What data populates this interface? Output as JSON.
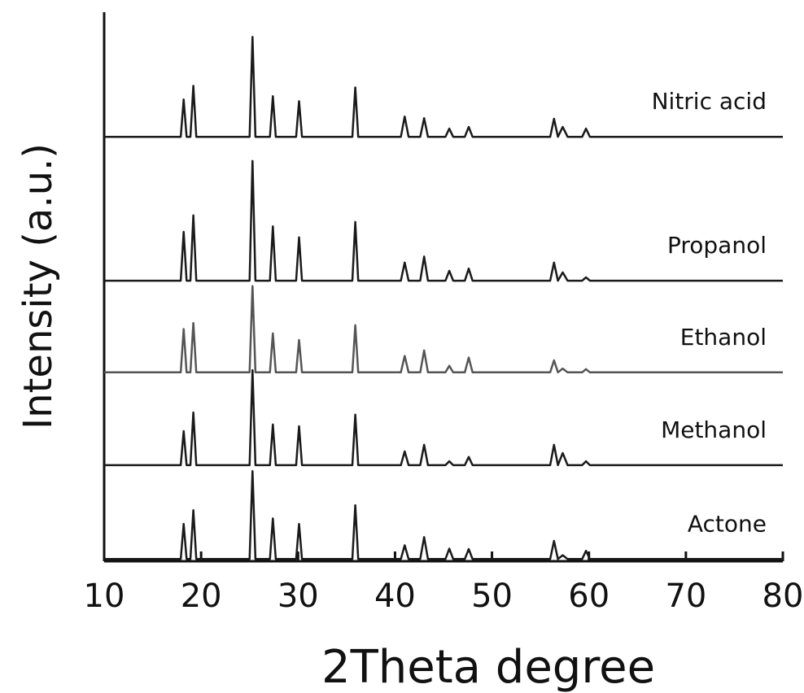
{
  "chart_data": {
    "type": "line",
    "xlabel": "2Theta degree",
    "ylabel": "Intensity (a.u.)",
    "x": [
      10,
      17.9,
      18.2,
      18.5,
      18.9,
      19.2,
      19.5,
      25.0,
      25.3,
      25.6,
      27.1,
      27.4,
      27.7,
      29.8,
      30.1,
      30.4,
      35.6,
      35.9,
      36.2,
      40.6,
      41.0,
      41.4,
      42.6,
      43.0,
      43.4,
      45.2,
      45.6,
      46.0,
      47.2,
      47.6,
      48.0,
      56.0,
      56.4,
      56.8,
      57.3,
      57.8,
      59.3,
      59.7,
      60.1,
      80
    ],
    "series": [
      {
        "name": "Nitric acid",
        "color": "#1a1a1a",
        "values": [
          77.3,
          77.3,
          84.1,
          77.3,
          77.3,
          86.6,
          77.3,
          77.3,
          95.5,
          77.3,
          77.3,
          84.7,
          77.3,
          77.3,
          83.8,
          77.3,
          77.3,
          86.3,
          77.3,
          77.3,
          81.0,
          77.3,
          77.3,
          80.7,
          77.3,
          77.3,
          78.8,
          77.3,
          77.3,
          79.1,
          77.3,
          77.3,
          80.6,
          77.3,
          79.1,
          77.3,
          77.3,
          78.8,
          77.3,
          77.3
        ]
      },
      {
        "name": "Propanol",
        "color": "#1a1a1a",
        "values": [
          51.1,
          51.1,
          60.0,
          51.1,
          51.1,
          63.0,
          51.1,
          51.1,
          72.9,
          51.1,
          51.1,
          61.0,
          51.1,
          51.1,
          59.0,
          51.1,
          51.1,
          61.8,
          51.1,
          51.1,
          54.4,
          51.1,
          51.1,
          55.5,
          51.1,
          51.1,
          52.9,
          51.1,
          51.1,
          53.3,
          51.1,
          51.1,
          54.4,
          51.1,
          52.6,
          51.1,
          51.1,
          51.7,
          51.1,
          51.1
        ]
      },
      {
        "name": "Ethanol",
        "color": "#555555",
        "values": [
          34.4,
          34.4,
          42.3,
          34.4,
          34.4,
          43.4,
          34.4,
          34.4,
          50.1,
          34.4,
          34.4,
          41.5,
          34.4,
          34.4,
          40.3,
          34.4,
          34.4,
          43.0,
          34.4,
          34.4,
          37.4,
          34.4,
          34.4,
          38.4,
          34.4,
          34.4,
          35.6,
          34.4,
          34.4,
          37.1,
          34.4,
          34.4,
          36.6,
          34.4,
          35.1,
          34.4,
          34.4,
          35.0,
          34.4,
          34.4
        ]
      },
      {
        "name": "Methanol",
        "color": "#1a1a1a",
        "values": [
          17.5,
          17.5,
          23.7,
          17.5,
          17.5,
          27.1,
          17.5,
          17.5,
          34.8,
          17.5,
          17.5,
          24.9,
          17.5,
          17.5,
          24.6,
          17.5,
          17.5,
          26.7,
          17.5,
          17.5,
          20.0,
          17.5,
          17.5,
          21.2,
          17.5,
          17.5,
          18.2,
          17.5,
          17.5,
          19.0,
          17.5,
          17.5,
          21.2,
          17.5,
          19.7,
          17.5,
          17.5,
          18.2,
          17.5,
          17.5
        ]
      },
      {
        "name": "Actone",
        "color": "#1a1a1a",
        "values": [
          0.4,
          0.4,
          6.8,
          0.4,
          0.4,
          9.3,
          0.4,
          0.4,
          16.4,
          0.4,
          0.4,
          7.8,
          0.4,
          0.4,
          6.8,
          0.4,
          0.4,
          10.2,
          0.4,
          0.4,
          2.9,
          0.4,
          0.4,
          4.4,
          0.4,
          0.4,
          2.3,
          0.4,
          0.4,
          2.2,
          0.4,
          0.4,
          3.7,
          0.4,
          1.1,
          0.4,
          0.4,
          1.9,
          0.4,
          0.4
        ]
      }
    ],
    "xlim": [
      10,
      80
    ],
    "xticks": [
      10,
      20,
      30,
      40,
      50,
      60,
      70,
      80
    ],
    "ylim": [
      0,
      100
    ]
  }
}
